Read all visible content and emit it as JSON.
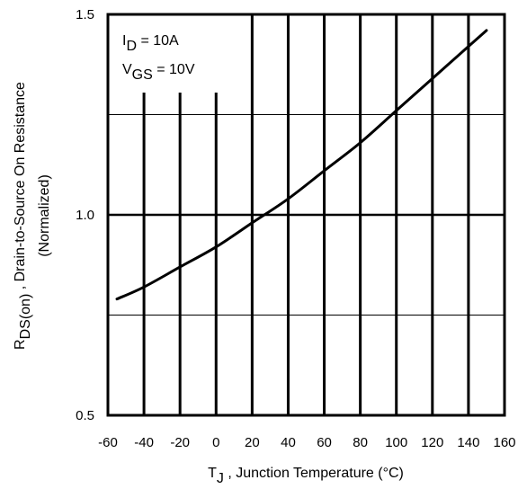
{
  "chart_data": {
    "type": "line",
    "xlabel": {
      "main": "T",
      "sub": "J",
      "rest": " , Junction Temperature (°C)"
    },
    "ylabel": {
      "line1_main": "R",
      "line1_sub": "DS(on)",
      "line1_rest": " , Drain-to-Source On Resistance",
      "line2": "(Normalized)"
    },
    "xlim": [
      -60,
      160
    ],
    "ylim": [
      0.5,
      1.5
    ],
    "x_ticks": [
      "-60",
      "-40",
      "-20",
      "0",
      "20",
      "40",
      "60",
      "80",
      "100",
      "120",
      "140",
      "160"
    ],
    "y_ticks": [
      "0.5",
      "1.0",
      "1.5"
    ],
    "grid": true,
    "annotations": {
      "id": {
        "main": "I",
        "sub": "D",
        "rest": " = 10A"
      },
      "vgs": {
        "main": "V",
        "sub": "GS",
        "rest": " = 10V"
      }
    },
    "series": [
      {
        "x": [
          -55,
          -40,
          -20,
          0,
          20,
          40,
          60,
          80,
          100,
          120,
          140,
          150
        ],
        "y": [
          0.79,
          0.82,
          0.87,
          0.92,
          0.98,
          1.04,
          1.11,
          1.18,
          1.26,
          1.34,
          1.42,
          1.46
        ]
      }
    ]
  }
}
